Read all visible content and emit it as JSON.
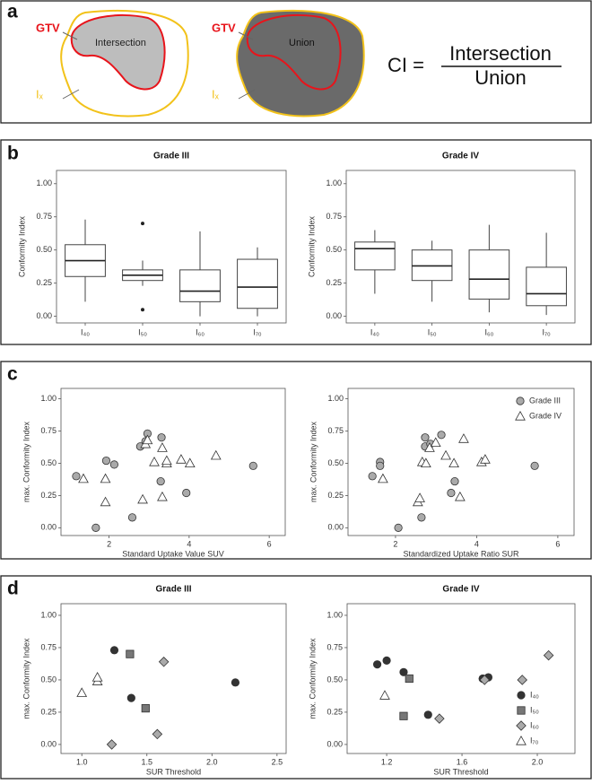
{
  "panel_labels": [
    "a",
    "b",
    "c",
    "d"
  ],
  "diagram": {
    "left": {
      "gtv": "GTV",
      "region": "Intersection",
      "contour": "Iₓ"
    },
    "right": {
      "gtv": "GTV",
      "region": "Union",
      "contour": "Iₓ"
    },
    "formula": {
      "lhs": "CI =",
      "numerator": "Intersection",
      "denominator": "Union"
    }
  },
  "chart_data": [
    {
      "type": "box",
      "title": "Grade III",
      "ylabel": "Conformity Index",
      "categories": [
        "I₄₀",
        "I₅₀",
        "I₆₀",
        "I₇₀"
      ],
      "boxes": [
        {
          "whislo": 0.11,
          "q1": 0.3,
          "med": 0.42,
          "q3": 0.54,
          "whishi": 0.73,
          "fliers": []
        },
        {
          "whislo": 0.23,
          "q1": 0.27,
          "med": 0.31,
          "q3": 0.35,
          "whishi": 0.42,
          "fliers": [
            0.7,
            0.05
          ]
        },
        {
          "whislo": 0.0,
          "q1": 0.11,
          "med": 0.19,
          "q3": 0.35,
          "whishi": 0.64,
          "fliers": []
        },
        {
          "whislo": 0.0,
          "q1": 0.06,
          "med": 0.22,
          "q3": 0.43,
          "whishi": 0.52,
          "fliers": []
        }
      ],
      "ylim": [
        -0.05,
        1.1
      ],
      "yticks": [
        {
          "value": 0,
          "label": "0.00"
        },
        {
          "value": 0.25,
          "label": "0.25"
        },
        {
          "value": 0.5,
          "label": "0.50"
        },
        {
          "value": 0.75,
          "label": "0.75"
        },
        {
          "value": 1,
          "label": "1.00"
        }
      ]
    },
    {
      "type": "box",
      "title": "Grade IV",
      "ylabel": "Conformity Index",
      "categories": [
        "I₄₀",
        "I₅₀",
        "I₆₀",
        "I₇₀"
      ],
      "boxes": [
        {
          "whislo": 0.17,
          "q1": 0.35,
          "med": 0.51,
          "q3": 0.56,
          "whishi": 0.65,
          "fliers": []
        },
        {
          "whislo": 0.11,
          "q1": 0.27,
          "med": 0.38,
          "q3": 0.5,
          "whishi": 0.57,
          "fliers": []
        },
        {
          "whislo": 0.03,
          "q1": 0.13,
          "med": 0.28,
          "q3": 0.5,
          "whishi": 0.69,
          "fliers": []
        },
        {
          "whislo": 0.01,
          "q1": 0.08,
          "med": 0.17,
          "q3": 0.37,
          "whishi": 0.63,
          "fliers": []
        }
      ],
      "ylim": [
        -0.05,
        1.1
      ],
      "yticks": [
        {
          "value": 0,
          "label": "0.00"
        },
        {
          "value": 0.25,
          "label": "0.25"
        },
        {
          "value": 0.5,
          "label": "0.50"
        },
        {
          "value": 0.75,
          "label": "0.75"
        },
        {
          "value": 1,
          "label": "1.00"
        }
      ]
    },
    {
      "type": "scatter",
      "xlabel": "Standard Uptake Value SUV",
      "ylabel": "max. Conformity Index",
      "xlim": [
        0.8,
        6.4
      ],
      "xticks": [
        2,
        4,
        6
      ],
      "ylim": [
        -0.06,
        1.08
      ],
      "yticks": [
        {
          "value": 0,
          "label": "0.00"
        },
        {
          "value": 0.25,
          "label": "0.25"
        },
        {
          "value": 0.5,
          "label": "0.50"
        },
        {
          "value": 0.75,
          "label": "0.75"
        },
        {
          "value": 1,
          "label": "1.00"
        }
      ],
      "series": [
        {
          "marker": "circle",
          "color": "#aaaaaa",
          "x": [
            1.18,
            1.67,
            1.93,
            2.13,
            2.58,
            2.78,
            2.96,
            2.91,
            3.31,
            3.29,
            3.93,
            5.6
          ],
          "y": [
            0.4,
            0.0,
            0.52,
            0.49,
            0.08,
            0.63,
            0.73,
            0.67,
            0.7,
            0.36,
            0.27,
            0.48
          ]
        },
        {
          "marker": "triangle",
          "color": "#ffffff",
          "x": [
            1.36,
            1.91,
            1.91,
            2.84,
            2.91,
            3.13,
            3.33,
            3.33,
            3.44,
            3.44,
            3.8,
            4.02,
            4.67,
            2.96
          ],
          "y": [
            0.38,
            0.38,
            0.2,
            0.22,
            0.65,
            0.51,
            0.62,
            0.24,
            0.5,
            0.52,
            0.53,
            0.5,
            0.56,
            0.68
          ]
        }
      ]
    },
    {
      "type": "scatter",
      "xlabel": "Standardized Uptake Ratio SUR",
      "ylabel": "max. Conformity Index",
      "xlim": [
        0.83,
        6.4
      ],
      "xticks": [
        2,
        4,
        6
      ],
      "ylim": [
        -0.06,
        1.08
      ],
      "yticks": [
        {
          "value": 0,
          "label": "0.00"
        },
        {
          "value": 0.25,
          "label": "0.25"
        },
        {
          "value": 0.5,
          "label": "0.50"
        },
        {
          "value": 0.75,
          "label": "0.75"
        },
        {
          "value": 1,
          "label": "1.00"
        }
      ],
      "legend": "upper right",
      "series": [
        {
          "name": "Grade III",
          "marker": "circle",
          "color": "#aaaaaa",
          "x": [
            1.43,
            1.62,
            1.62,
            2.07,
            2.64,
            2.73,
            2.73,
            2.86,
            3.13,
            3.37,
            3.46,
            5.43
          ],
          "y": [
            0.4,
            0.51,
            0.48,
            0.0,
            0.08,
            0.63,
            0.7,
            0.65,
            0.72,
            0.27,
            0.36,
            0.48
          ]
        },
        {
          "name": "Grade IV",
          "marker": "triangle",
          "color": "#ffffff",
          "x": [
            1.69,
            2.55,
            2.6,
            2.66,
            2.75,
            2.84,
            2.99,
            3.24,
            3.44,
            3.59,
            3.68,
            4.12,
            4.21
          ],
          "y": [
            0.38,
            0.2,
            0.23,
            0.51,
            0.5,
            0.62,
            0.66,
            0.56,
            0.5,
            0.24,
            0.69,
            0.51,
            0.53
          ]
        }
      ]
    },
    {
      "type": "scatter",
      "title": "Grade III",
      "xlabel": "SUR Threshold",
      "ylabel": "max. Conformity Index",
      "xlim": [
        0.84,
        2.57
      ],
      "xticks": [
        {
          "value": 1,
          "label": "1.0"
        },
        1.5,
        {
          "value": 2,
          "label": "2.0"
        },
        2.5
      ],
      "ylim": [
        -0.07,
        1.09
      ],
      "yticks": [
        {
          "value": 0,
          "label": "0.00"
        },
        {
          "value": 0.25,
          "label": "0.25"
        },
        {
          "value": 0.5,
          "label": "0.50"
        },
        {
          "value": 0.75,
          "label": "0.75"
        },
        {
          "value": 1,
          "label": "1.00"
        }
      ],
      "series": [
        {
          "marker": "circle",
          "color": "#333333",
          "x": [
            1.25,
            1.38,
            2.18
          ],
          "y": [
            0.73,
            0.36,
            0.48
          ]
        },
        {
          "marker": "square",
          "color": "#777777",
          "x": [
            1.37,
            1.49
          ],
          "y": [
            0.7,
            0.28
          ]
        },
        {
          "marker": "diamond",
          "color": "#aaaaaa",
          "x": [
            1.23,
            1.58,
            1.63
          ],
          "y": [
            0.0,
            0.08,
            0.64
          ]
        },
        {
          "marker": "triangle",
          "color": "#ffffff",
          "x": [
            1.0,
            1.12,
            1.12
          ],
          "y": [
            0.4,
            0.49,
            0.52
          ]
        }
      ]
    },
    {
      "type": "scatter",
      "title": "Grade IV",
      "xlabel": "SUR Threshold",
      "ylabel": "max. Conformity Index",
      "xlim": [
        0.99,
        2.2
      ],
      "xticks": [
        1.2,
        1.6,
        {
          "value": 2,
          "label": "2.0"
        }
      ],
      "ylim": [
        -0.07,
        1.09
      ],
      "yticks": [
        {
          "value": 0,
          "label": "0.00"
        },
        {
          "value": 0.25,
          "label": "0.25"
        },
        {
          "value": 0.5,
          "label": "0.50"
        },
        {
          "value": 0.75,
          "label": "0.75"
        },
        {
          "value": 1,
          "label": "1.00"
        }
      ],
      "legend": "lower right",
      "series": [
        {
          "name": "I₄₀",
          "marker": "circle",
          "color": "#333333",
          "x": [
            1.15,
            1.2,
            1.29,
            1.42,
            1.71,
            1.74
          ],
          "y": [
            0.62,
            0.65,
            0.56,
            0.23,
            0.51,
            0.52
          ]
        },
        {
          "name": "I₅₀",
          "marker": "square",
          "color": "#777777",
          "x": [
            1.32,
            1.29
          ],
          "y": [
            0.51,
            0.22
          ]
        },
        {
          "name": "I₆₀",
          "marker": "diamond",
          "color": "#aaaaaa",
          "x": [
            1.48,
            1.72,
            1.92,
            2.06
          ],
          "y": [
            0.2,
            0.5,
            0.5,
            0.69
          ]
        },
        {
          "name": "I₇₀",
          "marker": "triangle",
          "color": "#ffffff",
          "x": [
            1.19
          ],
          "y": [
            0.38
          ]
        }
      ]
    }
  ]
}
